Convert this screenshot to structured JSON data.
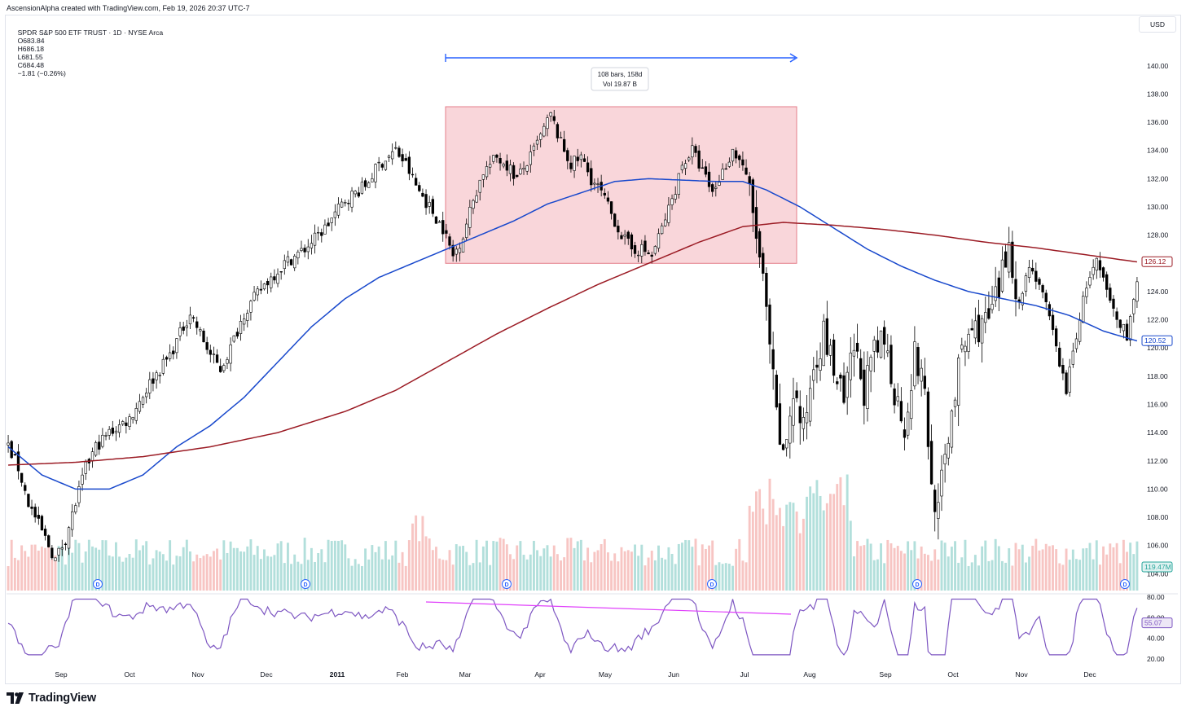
{
  "header": {
    "credit": "AscensionAlpha created with TradingView.com, Feb 19, 2026 20:37 UTC-7",
    "symbol": "SPDR S&P 500 ETF TRUST · 1D · NYSE Arca",
    "open": "O683.84",
    "high": "H686.18",
    "low": "L681.55",
    "close": "C684.48",
    "change": "−1.81 (−0.26%)",
    "currency": "USD"
  },
  "footer": {
    "brand": "TradingView"
  },
  "colors": {
    "up": "#000000",
    "down": "#000000",
    "sma_fast": "#1848cc",
    "sma_slow": "#9b1b24",
    "vol_up": "#b2dfdb",
    "vol_down": "#f7c5c3",
    "range_fill": "#f7c8cd",
    "range_stroke": "#e57d8a",
    "arrow": "#2962ff",
    "rsi": "#7e57c2",
    "divergence": "#e040fb",
    "marker": "#2962ff"
  },
  "chart_data": {
    "type": "candlestick",
    "price_axis": {
      "ylim": [
        103.5,
        141.2
      ],
      "ticks": [
        "140.00",
        "138.00",
        "136.00",
        "134.00",
        "132.00",
        "130.00",
        "128.00",
        "126.00",
        "124.00",
        "122.00",
        "120.00",
        "118.00",
        "116.00",
        "114.00",
        "112.00",
        "110.00",
        "108.00",
        "106.00",
        "104.00"
      ]
    },
    "x_ticks": [
      "Sep",
      "Oct",
      "Nov",
      "Dec",
      "2011",
      "Feb",
      "Mar",
      "Apr",
      "May",
      "Jun",
      "Jul",
      "Aug",
      "Sep",
      "Oct",
      "Nov",
      "Dec"
    ],
    "price_path": [
      [
        0,
        113.0
      ],
      [
        3,
        111.5
      ],
      [
        6,
        109.0
      ],
      [
        10,
        107.0
      ],
      [
        14,
        105.0
      ],
      [
        17,
        106.5
      ],
      [
        20,
        109.0
      ],
      [
        23,
        111.5
      ],
      [
        26,
        113.0
      ],
      [
        30,
        114.0
      ],
      [
        36,
        115.0
      ],
      [
        42,
        117.5
      ],
      [
        48,
        119.5
      ],
      [
        52,
        121.5
      ],
      [
        54,
        122.5
      ],
      [
        57,
        121.0
      ],
      [
        60,
        119.5
      ],
      [
        63,
        118.5
      ],
      [
        66,
        120.0
      ],
      [
        70,
        122.5
      ],
      [
        76,
        124.5
      ],
      [
        82,
        126.0
      ],
      [
        88,
        127.0
      ],
      [
        94,
        128.5
      ],
      [
        100,
        130.5
      ],
      [
        106,
        131.5
      ],
      [
        110,
        133.0
      ],
      [
        115,
        134.0
      ],
      [
        118,
        133.0
      ],
      [
        121,
        131.5
      ],
      [
        125,
        130.0
      ],
      [
        129,
        128.5
      ],
      [
        132,
        126.5
      ],
      [
        135,
        128.0
      ],
      [
        138,
        130.5
      ],
      [
        141,
        132.5
      ],
      [
        145,
        133.5
      ],
      [
        148,
        133.0
      ],
      [
        151,
        132.0
      ],
      [
        155,
        133.5
      ],
      [
        158,
        135.0
      ],
      [
        161,
        136.5
      ],
      [
        164,
        134.5
      ],
      [
        167,
        133.0
      ],
      [
        170,
        133.5
      ],
      [
        173,
        132.0
      ],
      [
        176,
        131.0
      ],
      [
        179,
        129.5
      ],
      [
        182,
        128.0
      ],
      [
        185,
        127.0
      ],
      [
        188,
        127.0
      ],
      [
        191,
        126.5
      ],
      [
        194,
        128.5
      ],
      [
        197,
        130.5
      ],
      [
        200,
        133.0
      ],
      [
        203,
        134.0
      ],
      [
        206,
        132.5
      ],
      [
        209,
        131.0
      ],
      [
        212,
        132.5
      ],
      [
        215,
        134.0
      ],
      [
        218,
        133.0
      ],
      [
        220,
        131.0
      ],
      [
        222,
        128.0
      ],
      [
        224,
        124.5
      ],
      [
        226,
        120.0
      ],
      [
        228,
        115.0
      ],
      [
        230,
        112.0
      ],
      [
        233,
        117.0
      ],
      [
        236,
        114.0
      ],
      [
        239,
        119.0
      ],
      [
        242,
        121.0
      ],
      [
        245,
        118.5
      ],
      [
        248,
        116.0
      ],
      [
        251,
        120.0
      ],
      [
        254,
        117.0
      ],
      [
        257,
        119.5
      ],
      [
        260,
        120.5
      ],
      [
        263,
        117.0
      ],
      [
        266,
        114.5
      ],
      [
        269,
        119.5
      ],
      [
        272,
        117.0
      ],
      [
        274,
        110.0
      ],
      [
        276,
        108.5
      ],
      [
        279,
        114.0
      ],
      [
        282,
        118.5
      ],
      [
        285,
        121.0
      ],
      [
        288,
        121.5
      ],
      [
        291,
        122.0
      ],
      [
        294,
        124.0
      ],
      [
        297,
        127.5
      ],
      [
        300,
        123.0
      ],
      [
        303,
        126.0
      ],
      [
        306,
        124.5
      ],
      [
        309,
        122.0
      ],
      [
        312,
        119.0
      ],
      [
        314,
        117.0
      ],
      [
        317,
        121.0
      ],
      [
        320,
        124.5
      ],
      [
        323,
        126.0
      ],
      [
        326,
        124.0
      ],
      [
        329,
        122.0
      ],
      [
        332,
        121.0
      ],
      [
        335,
        124.5
      ]
    ],
    "sma_fast_path": [
      [
        0,
        113.0
      ],
      [
        10,
        111.0
      ],
      [
        20,
        110.0
      ],
      [
        30,
        110.0
      ],
      [
        40,
        111.0
      ],
      [
        50,
        113.0
      ],
      [
        60,
        114.5
      ],
      [
        70,
        116.5
      ],
      [
        80,
        119.0
      ],
      [
        90,
        121.5
      ],
      [
        100,
        123.5
      ],
      [
        110,
        125.0
      ],
      [
        120,
        126.0
      ],
      [
        130,
        127.0
      ],
      [
        140,
        128.0
      ],
      [
        150,
        129.0
      ],
      [
        160,
        130.2
      ],
      [
        170,
        131.0
      ],
      [
        180,
        131.8
      ],
      [
        190,
        132.0
      ],
      [
        200,
        131.9
      ],
      [
        210,
        131.8
      ],
      [
        218,
        131.8
      ],
      [
        225,
        131.2
      ],
      [
        235,
        130.0
      ],
      [
        245,
        128.5
      ],
      [
        255,
        127.0
      ],
      [
        265,
        125.8
      ],
      [
        275,
        124.8
      ],
      [
        285,
        124.0
      ],
      [
        295,
        123.5
      ],
      [
        305,
        123.0
      ],
      [
        315,
        122.3
      ],
      [
        325,
        121.2
      ],
      [
        335,
        120.5
      ]
    ],
    "sma_slow_path": [
      [
        0,
        111.7
      ],
      [
        20,
        111.9
      ],
      [
        40,
        112.3
      ],
      [
        60,
        113.0
      ],
      [
        80,
        114.0
      ],
      [
        100,
        115.5
      ],
      [
        115,
        117.0
      ],
      [
        130,
        119.0
      ],
      [
        145,
        121.0
      ],
      [
        160,
        122.8
      ],
      [
        175,
        124.5
      ],
      [
        190,
        126.0
      ],
      [
        205,
        127.5
      ],
      [
        218,
        128.6
      ],
      [
        230,
        128.9
      ],
      [
        245,
        128.7
      ],
      [
        260,
        128.4
      ],
      [
        275,
        128.0
      ],
      [
        290,
        127.5
      ],
      [
        305,
        127.1
      ],
      [
        320,
        126.6
      ],
      [
        335,
        126.1
      ]
    ],
    "sma_fast_last": "120.52",
    "sma_slow_last": "126.12",
    "volume_last": "119.47M",
    "dividend_markers": [
      "D",
      "D",
      "D",
      "D",
      "D",
      "D"
    ],
    "measure_label": {
      "bars": "108 bars, 158d",
      "volume": "Vol 19.87 B"
    },
    "measure_range": {
      "from_price": 126.0,
      "to_price": 137.1
    },
    "rsi_axis": {
      "ticks": [
        "80.00",
        "60.00",
        "40.00",
        "20.00"
      ],
      "last": "55.07"
    }
  }
}
